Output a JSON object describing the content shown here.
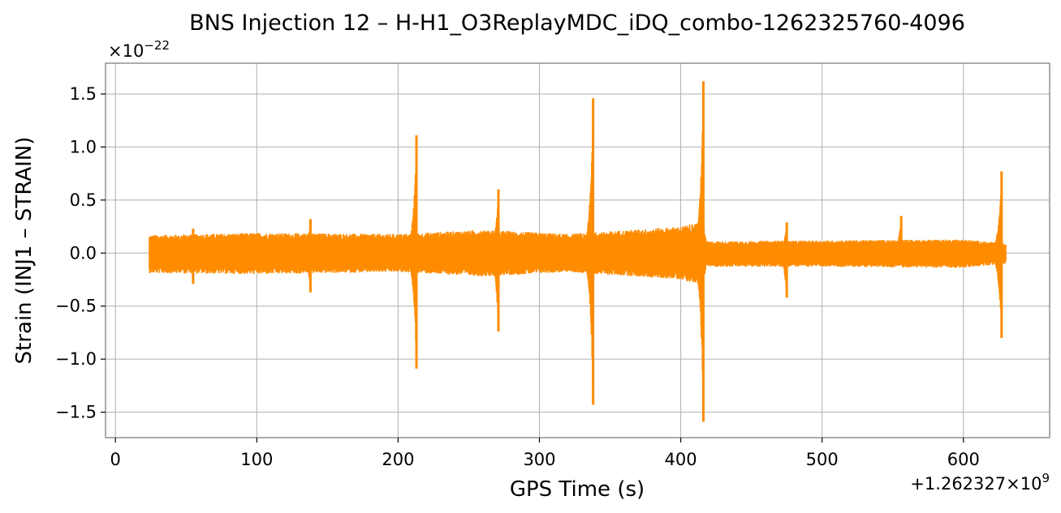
{
  "chart_data": {
    "type": "line",
    "title": "BNS Injection 12 – H-H1_O3ReplayMDC_iDQ_combo-1262325760-4096",
    "xlabel": "GPS Time (s)",
    "ylabel": "Strain (INJ1 – STRAIN)",
    "x_offset_label": "+1.262327×10",
    "x_offset_exp": "9",
    "y_scale_label": "×10",
    "y_scale_exp": "−22",
    "xlim": [
      -7,
      661
    ],
    "ylim": [
      -1.74,
      1.79
    ],
    "x_ticks": [
      0,
      100,
      200,
      300,
      400,
      500,
      600
    ],
    "x_tick_labels": [
      "0",
      "100",
      "200",
      "300",
      "400",
      "500",
      "600"
    ],
    "y_ticks": [
      -1.5,
      -1.0,
      -0.5,
      0.0,
      0.5,
      1.0,
      1.5
    ],
    "y_tick_labels": [
      "−1.5",
      "−1.0",
      "−0.5",
      "0.0",
      "0.5",
      "1.0",
      "1.5"
    ],
    "grid": true,
    "color": "#ff8c00",
    "series": [
      {
        "data_range": [
          24,
          630
        ],
        "baseline_envelope": [
          {
            "x": 24,
            "max": 0.17,
            "min": -0.19
          },
          {
            "x": 100,
            "max": 0.19,
            "min": -0.2
          },
          {
            "x": 200,
            "max": 0.18,
            "min": -0.18
          },
          {
            "x": 260,
            "max": 0.22,
            "min": -0.22
          },
          {
            "x": 320,
            "max": 0.18,
            "min": -0.18
          },
          {
            "x": 400,
            "max": 0.25,
            "min": -0.25
          },
          {
            "x": 416,
            "max": 0.3,
            "min": -0.3
          },
          {
            "x": 418,
            "max": 0.11,
            "min": -0.13
          },
          {
            "x": 500,
            "max": 0.12,
            "min": -0.13
          },
          {
            "x": 600,
            "max": 0.13,
            "min": -0.14
          },
          {
            "x": 630,
            "max": 0.09,
            "min": -0.1
          }
        ],
        "events": [
          {
            "t": 55,
            "peak": 0.23,
            "trough": -0.29
          },
          {
            "t": 138,
            "peak": 0.32,
            "trough": -0.37
          },
          {
            "t": 213,
            "peak": 1.11,
            "trough": -1.09
          },
          {
            "t": 271,
            "peak": 0.6,
            "trough": -0.74
          },
          {
            "t": 338,
            "peak": 1.46,
            "trough": -1.43
          },
          {
            "t": 416,
            "peak": 1.62,
            "trough": -1.59
          },
          {
            "t": 475,
            "peak": 0.29,
            "trough": -0.42
          },
          {
            "t": 556,
            "peak": 0.35,
            "trough": -0.1
          },
          {
            "t": 627,
            "peak": 0.77,
            "trough": -0.8
          }
        ]
      }
    ]
  }
}
